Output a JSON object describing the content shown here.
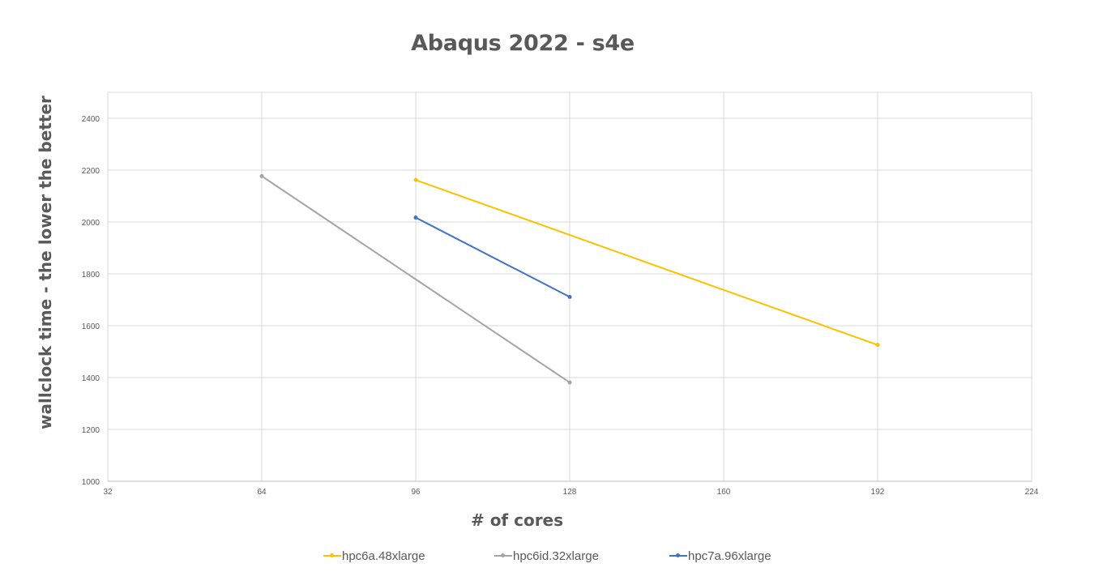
{
  "chart_data": {
    "type": "line",
    "title": "Abaqus 2022 - s4e",
    "xlabel": "# of cores",
    "ylabel": "wallclock time - the lower the better",
    "xlim": [
      32,
      224
    ],
    "ylim": [
      1000,
      2500
    ],
    "xticks": [
      "32",
      "64",
      "96",
      "128",
      "160",
      "192",
      "224"
    ],
    "yticks": [
      "1000",
      "1200",
      "1400",
      "1600",
      "1800",
      "2000",
      "2200",
      "2400"
    ],
    "grid": true,
    "legend_position": "bottom",
    "series": [
      {
        "name": "hpc6a.48xlarge",
        "color": "#FFC000",
        "points": [
          {
            "x": 96,
            "y": 2162
          },
          {
            "x": 192,
            "y": 1526
          }
        ]
      },
      {
        "name": "hpc6id.32xlarge",
        "color": "#A5A5A5",
        "points": [
          {
            "x": 64,
            "y": 2177
          },
          {
            "x": 128,
            "y": 1381
          }
        ]
      },
      {
        "name": "hpc7a.96xlarge",
        "color": "#4472C4",
        "points": [
          {
            "x": 96,
            "y": 2017
          },
          {
            "x": 128,
            "y": 1711
          }
        ]
      }
    ]
  }
}
